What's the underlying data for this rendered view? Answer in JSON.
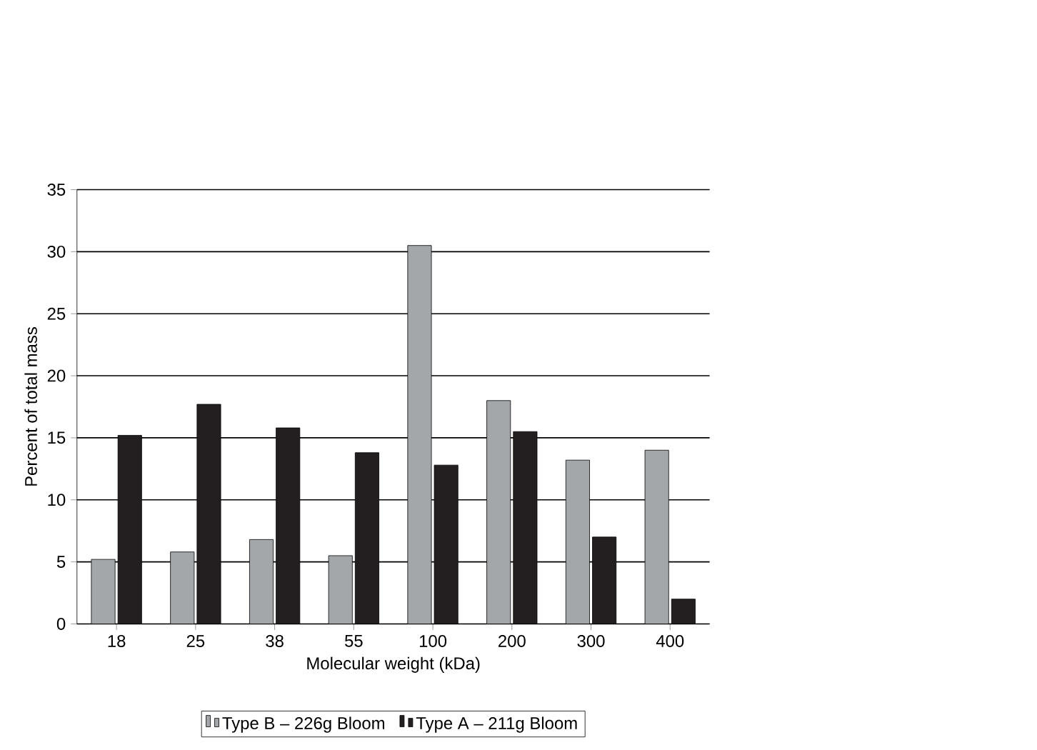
{
  "chart_data": {
    "type": "bar",
    "xlabel": "Molecular weight (kDa)",
    "ylabel": "Percent of total mass",
    "categories": [
      "18",
      "25",
      "38",
      "55",
      "100",
      "200",
      "300",
      "400"
    ],
    "series": [
      {
        "name": "Type B – 226g Bloom",
        "color": "#a4a7aa",
        "values": [
          5.2,
          5.8,
          6.8,
          5.5,
          30.5,
          18,
          13.2,
          14
        ]
      },
      {
        "name": "Type A – 211g Bloom",
        "color": "#231f20",
        "values": [
          15.2,
          17.7,
          15.8,
          13.8,
          12.8,
          15.5,
          7,
          2
        ]
      }
    ],
    "ylim": [
      0,
      35
    ],
    "yticks": [
      0,
      5,
      10,
      15,
      20,
      25,
      30,
      35
    ],
    "grid": "y",
    "legend": "bottom"
  }
}
